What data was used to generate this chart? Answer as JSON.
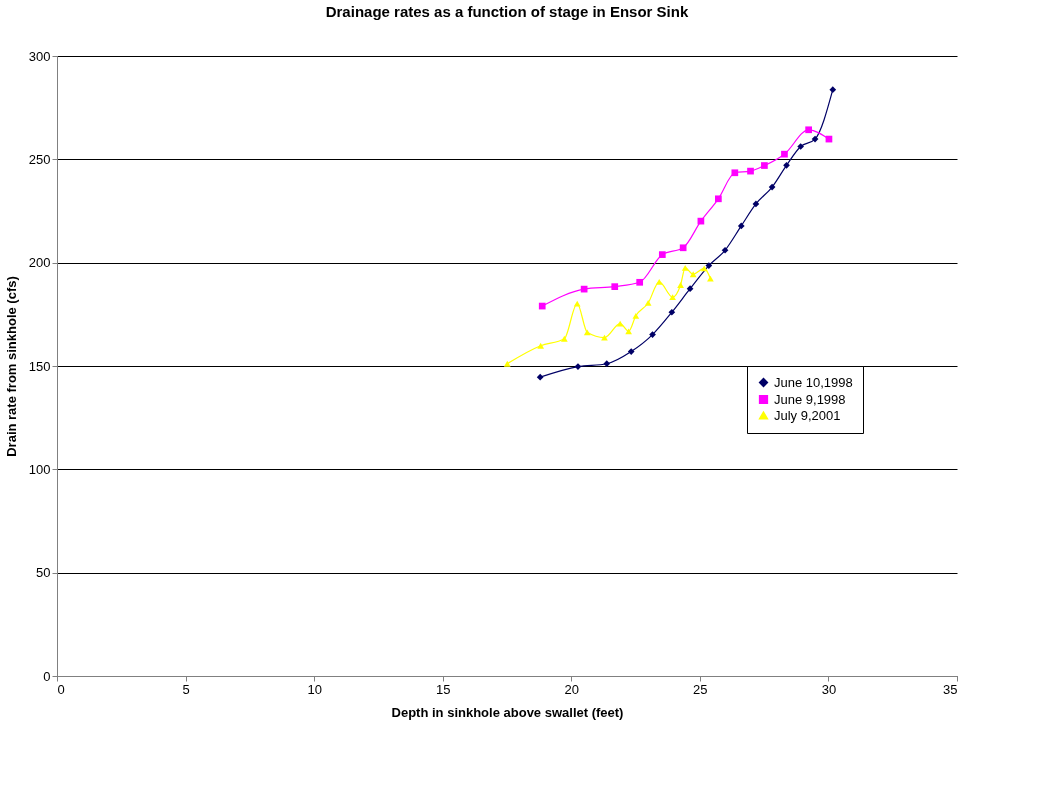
{
  "chart_data": {
    "type": "line",
    "title": "Drainage rates as a function of stage in Ensor Sink",
    "xlabel": "Depth in sinkhole above swallet (feet)",
    "ylabel": "Drain rate from sinkhole (cfs)",
    "xlim": [
      0,
      35
    ],
    "xticks": [
      0,
      5,
      10,
      15,
      20,
      25,
      30,
      35
    ],
    "ylim": [
      0,
      300
    ],
    "yticks": [
      0,
      50,
      100,
      150,
      200,
      250,
      300
    ],
    "grid": "y",
    "legend": "right",
    "line_style": "solid",
    "series": [
      {
        "name": "June 10,1998",
        "color": "#000066",
        "marker": "diamond",
        "x": [
          18.79,
          20.26,
          21.38,
          22.33,
          23.16,
          23.91,
          24.62,
          25.35,
          25.98,
          26.61,
          27.18,
          27.81,
          28.37,
          28.92,
          29.48,
          30.17
        ],
        "values": [
          144.6,
          149.7,
          151.1,
          157.0,
          165.2,
          176.0,
          187.4,
          198.6,
          206.0,
          217.8,
          228.4,
          236.6,
          247.1,
          256.2,
          259.8,
          283.7
        ]
      },
      {
        "name": "June 9,1998",
        "color": "#ff00ff",
        "marker": "square",
        "x": [
          18.87,
          20.5,
          21.69,
          22.66,
          23.54,
          24.35,
          25.04,
          25.72,
          26.36,
          26.97,
          27.51,
          28.29,
          29.23,
          30.02
        ],
        "values": [
          179.0,
          187.2,
          188.4,
          190.5,
          203.9,
          207.2,
          220.1,
          230.9,
          243.5,
          244.3,
          247.0,
          252.5,
          264.3,
          259.8
        ]
      },
      {
        "name": "July 9,2001",
        "color": "#ffff00",
        "marker": "triangle",
        "x": [
          17.51,
          18.81,
          19.73,
          20.23,
          20.62,
          21.29,
          21.9,
          22.23,
          22.51,
          22.99,
          23.42,
          23.94,
          24.25,
          24.43,
          24.74,
          25.17,
          25.41
        ],
        "values": [
          151.1,
          159.8,
          163.2,
          180.2,
          166.3,
          163.7,
          170.5,
          166.8,
          174.3,
          180.5,
          190.7,
          183.3,
          189.2,
          197.5,
          194.4,
          197.2,
          192.3
        ]
      }
    ]
  }
}
